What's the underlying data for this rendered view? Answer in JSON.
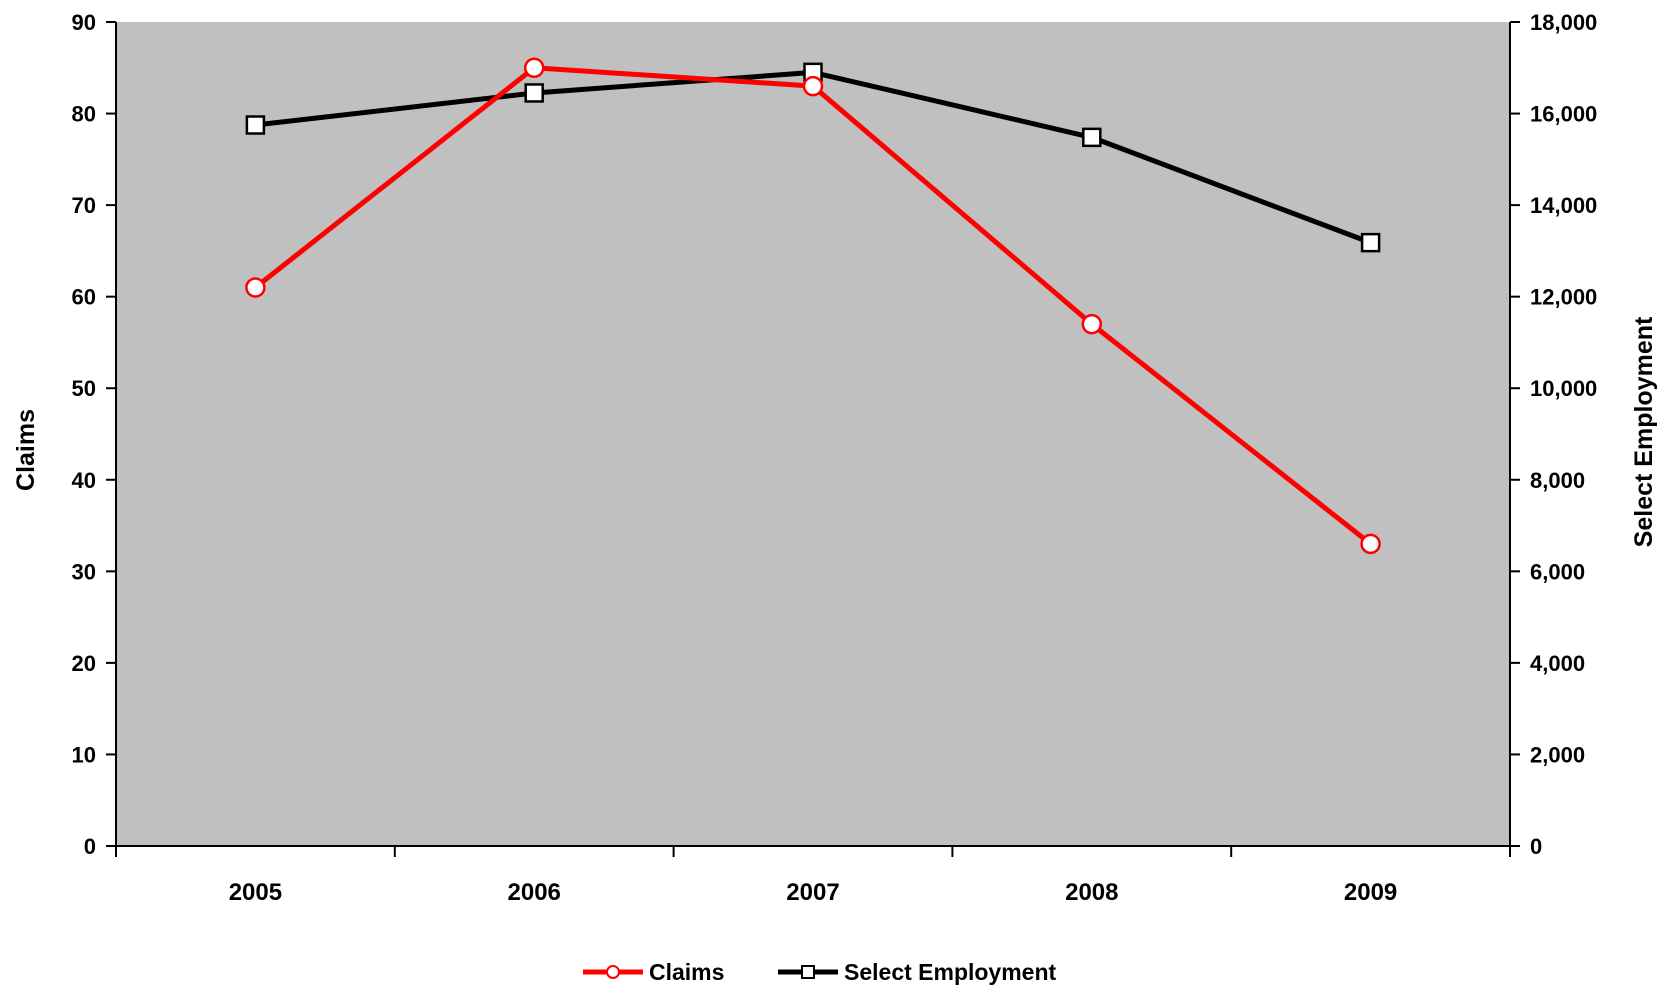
{
  "chart_data": {
    "type": "line",
    "categories": [
      "2005",
      "2006",
      "2007",
      "2008",
      "2009"
    ],
    "series": [
      {
        "name": "Claims",
        "axis": "left",
        "color": "#ff0000",
        "marker": "circle",
        "values": [
          61,
          85,
          83,
          57,
          33
        ]
      },
      {
        "name": "Select Employment",
        "axis": "right",
        "color": "#000000",
        "marker": "square",
        "values": [
          15750,
          16450,
          16900,
          15480,
          13180
        ]
      }
    ],
    "y_left": {
      "label": "Claims",
      "ylim": [
        0,
        90
      ],
      "ticks": [
        "0",
        "10",
        "20",
        "30",
        "40",
        "50",
        "60",
        "70",
        "80",
        "90"
      ]
    },
    "y_right": {
      "label": "Select Employment",
      "ylim": [
        0,
        18000
      ],
      "ticks": [
        "0",
        "2,000",
        "4,000",
        "6,000",
        "8,000",
        "10,000",
        "12,000",
        "14,000",
        "16,000",
        "18,000"
      ]
    },
    "plot_background": "#c0c0c0",
    "grid": false,
    "legend_position": "bottom"
  }
}
